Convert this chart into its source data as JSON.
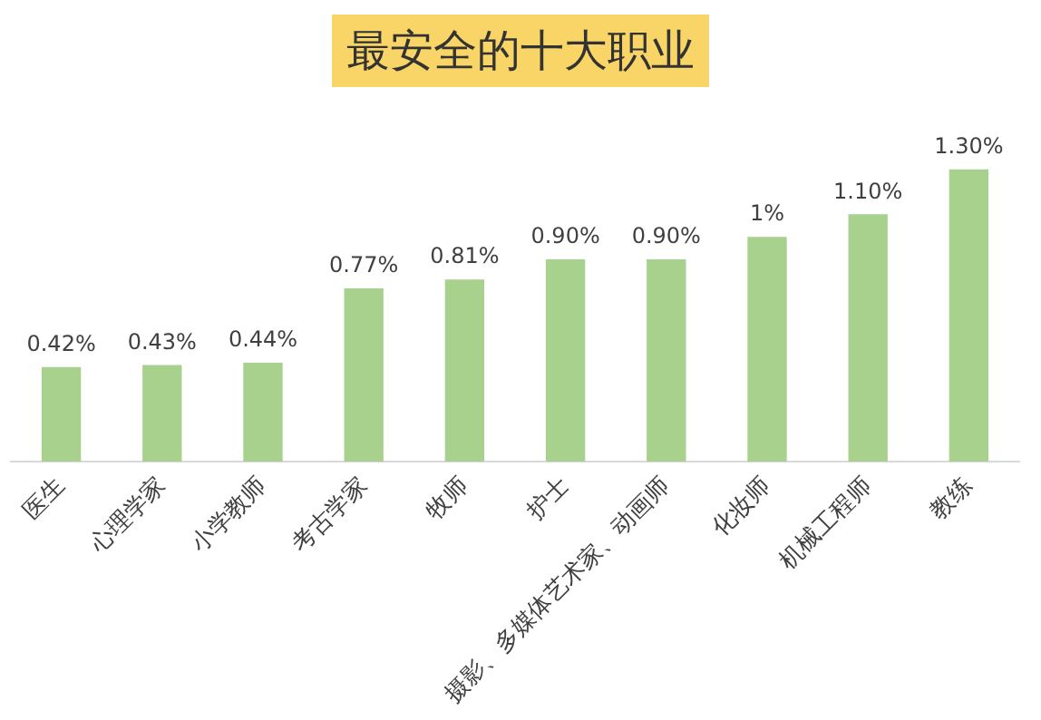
{
  "chart_data": {
    "type": "bar",
    "title": "最安全的十大职业",
    "categories": [
      "医生",
      "心理学家",
      "小学教师",
      "考古学家",
      "牧师",
      "护士",
      "摄影、多媒体艺术家、动画师",
      "化妆师",
      "机械工程师",
      "教练"
    ],
    "values": [
      0.42,
      0.43,
      0.44,
      0.77,
      0.81,
      0.9,
      0.9,
      1,
      1.1,
      1.3
    ],
    "value_labels": [
      "0.42%",
      "0.43%",
      "0.44%",
      "0.77%",
      "0.81%",
      "0.90%",
      "0.90%",
      "1%",
      "1.10%",
      "1.30%"
    ],
    "color": "#a9d18e",
    "grid": false,
    "legend": false
  }
}
